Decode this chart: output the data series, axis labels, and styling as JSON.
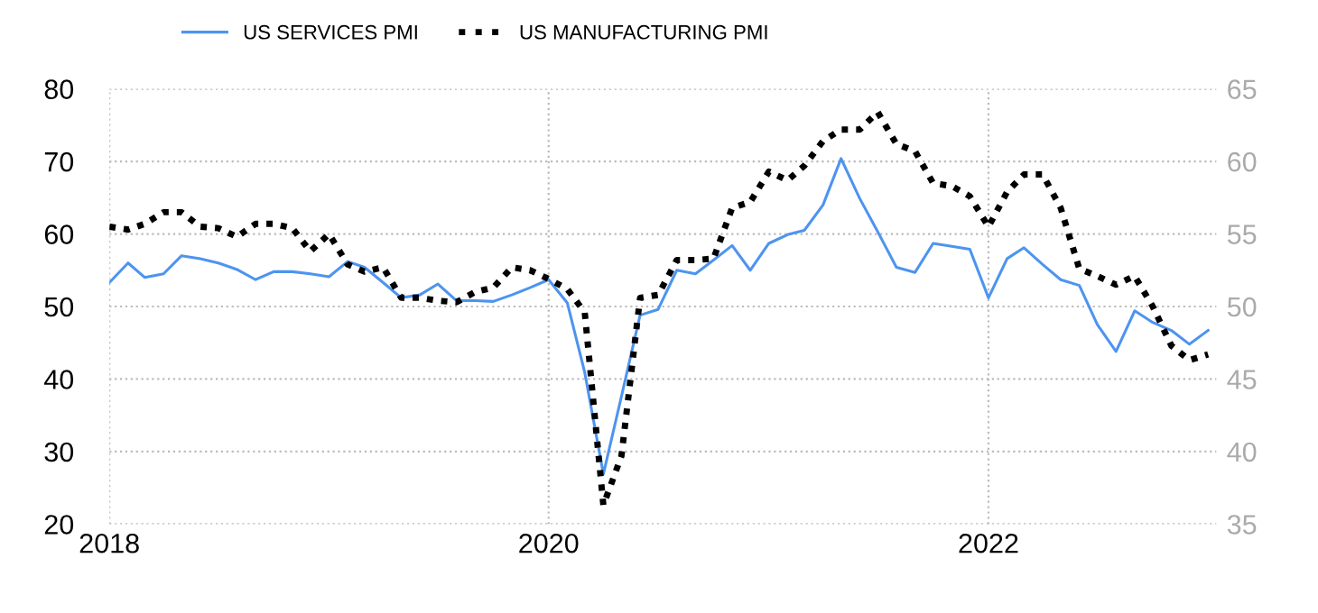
{
  "chart_data": {
    "type": "line",
    "x": [
      "2018-01",
      "2018-02",
      "2018-03",
      "2018-04",
      "2018-05",
      "2018-06",
      "2018-07",
      "2018-08",
      "2018-09",
      "2018-10",
      "2018-11",
      "2018-12",
      "2019-01",
      "2019-02",
      "2019-03",
      "2019-04",
      "2019-05",
      "2019-06",
      "2019-07",
      "2019-08",
      "2019-09",
      "2019-10",
      "2019-11",
      "2019-12",
      "2020-01",
      "2020-02",
      "2020-03",
      "2020-04",
      "2020-05",
      "2020-06",
      "2020-07",
      "2020-08",
      "2020-09",
      "2020-10",
      "2020-11",
      "2020-12",
      "2021-01",
      "2021-02",
      "2021-03",
      "2021-04",
      "2021-05",
      "2021-06",
      "2021-07",
      "2021-08",
      "2021-09",
      "2021-10",
      "2021-11",
      "2021-12",
      "2022-01",
      "2022-02",
      "2022-03",
      "2022-04",
      "2022-05",
      "2022-06",
      "2022-07",
      "2022-08",
      "2022-09",
      "2022-10",
      "2022-11",
      "2022-12",
      "2023-01"
    ],
    "series": [
      {
        "name": "US SERVICES PMI",
        "color": "#4d94f0",
        "line_style": "solid",
        "values": [
          53.3,
          56.0,
          54.0,
          54.5,
          57.0,
          56.6,
          56.0,
          55.1,
          53.7,
          54.8,
          54.8,
          54.5,
          54.1,
          56.2,
          55.4,
          53.3,
          51.2,
          51.6,
          53.1,
          50.8,
          50.8,
          50.7,
          51.6,
          52.6,
          53.7,
          50.5,
          40.9,
          26.9,
          37.6,
          48.8,
          49.6,
          55.0,
          54.5,
          56.4,
          58.4,
          55.0,
          58.7,
          59.9,
          60.5,
          64.0,
          70.4,
          64.9,
          60.3,
          55.4,
          54.7,
          58.7,
          58.3,
          57.9,
          51.2,
          56.6,
          58.1,
          55.8,
          53.7,
          52.9,
          47.5,
          43.8,
          49.4,
          47.8,
          46.7,
          44.8,
          46.7
        ]
      },
      {
        "name": "US MANUFACTURING PMI",
        "color": "#000000",
        "line_style": "dotted",
        "axis": "y2",
        "values": [
          55.5,
          55.3,
          55.7,
          56.5,
          56.5,
          55.5,
          55.4,
          54.8,
          55.7,
          55.7,
          55.4,
          53.8,
          55.0,
          52.9,
          52.4,
          52.7,
          50.6,
          50.6,
          50.4,
          50.3,
          51.0,
          51.3,
          52.7,
          52.5,
          51.9,
          51.2,
          49.6,
          36.3,
          39.7,
          50.6,
          50.8,
          53.2,
          53.2,
          53.3,
          56.8,
          57.2,
          59.3,
          58.7,
          59.7,
          61.4,
          62.2,
          62.2,
          63.4,
          61.2,
          60.7,
          58.5,
          58.3,
          57.6,
          55.5,
          57.9,
          59.1,
          59.1,
          56.8,
          52.6,
          52.1,
          51.5,
          52.1,
          50.0,
          47.3,
          46.3,
          46.7
        ]
      }
    ],
    "xlim": [
      "2018-01-01",
      "2023-01-15"
    ],
    "xticks": [
      {
        "value": "2018-01-01",
        "label": "2018"
      },
      {
        "value": "2020-01-01",
        "label": "2020"
      },
      {
        "value": "2022-01-01",
        "label": "2022"
      }
    ],
    "ylim": [
      20,
      80
    ],
    "yticks": [
      20,
      30,
      40,
      50,
      60,
      70,
      80
    ],
    "y2lim": [
      35,
      65
    ],
    "y2ticks": [
      35,
      40,
      45,
      50,
      55,
      60,
      65
    ],
    "grid": true,
    "legend": "top left"
  }
}
